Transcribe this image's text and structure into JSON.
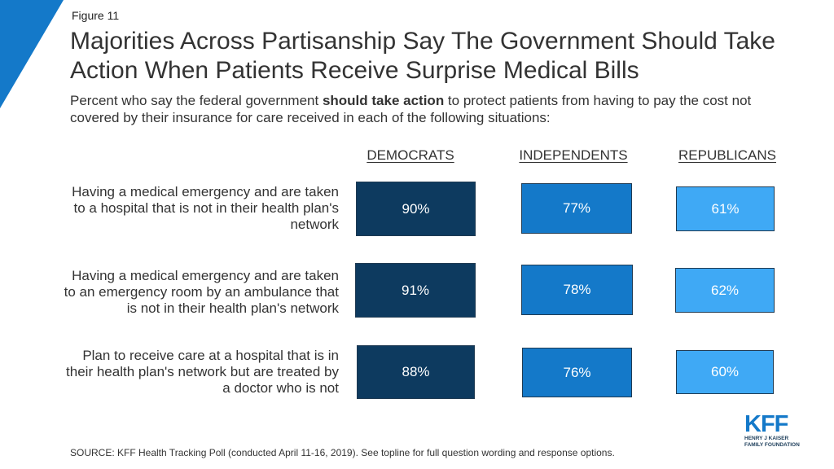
{
  "figure_label": "Figure 11",
  "title": "Majorities Across Partisanship Say The Government Should Take Action When Patients Receive Surprise Medical Bills",
  "subtitle": {
    "before": "Percent who say the federal government ",
    "bold": "should take action",
    "after": " to protect patients from having to pay the cost not covered by their insurance for care received in each of the following situations:"
  },
  "colors": {
    "corner": "#1479c9",
    "democrats": "#0d3a5f",
    "independents": "#1479c9",
    "republicans": "#3fa9f5"
  },
  "chart_data": {
    "type": "table",
    "columns": [
      "DEMOCRATS",
      "INDEPENDENTS",
      "REPUBLICANS"
    ],
    "rows": [
      "Having a medical emergency and are taken to a hospital that is not in their health plan's network",
      "Having a medical emergency and are taken to an emergency room by an ambulance that is not in their health plan's network",
      "Plan to receive care at a hospital that is in their health plan's network but are treated by a doctor who is not"
    ],
    "series": [
      {
        "name": "DEMOCRATS",
        "values": [
          90,
          91,
          88
        ]
      },
      {
        "name": "INDEPENDENTS",
        "values": [
          77,
          78,
          76
        ]
      },
      {
        "name": "REPUBLICANS",
        "values": [
          61,
          62,
          60
        ]
      }
    ],
    "value_format": "percent",
    "ylim": [
      0,
      100
    ]
  },
  "source": "SOURCE: KFF Health Tracking Poll (conducted April 11-16, 2019). See topline for full question wording and response options.",
  "logo": {
    "name": "KFF",
    "line1": "HENRY J KAISER",
    "line2": "FAMILY FOUNDATION"
  }
}
